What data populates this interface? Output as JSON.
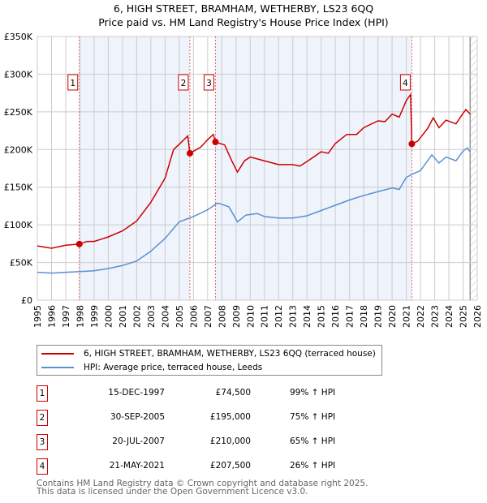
{
  "title": "6, HIGH STREET, BRAMHAM, WETHERBY, LS23 6QQ",
  "subtitle": "Price paid vs. HM Land Registry's House Price Index (HPI)",
  "colors": {
    "property": "#cc0000",
    "hpi": "#5b8fd4",
    "shade": "#eef3fc"
  },
  "chart_data": {
    "type": "line",
    "xlim": [
      1995,
      2026
    ],
    "ylim": [
      0,
      350000
    ],
    "y_ticks": [
      0,
      50000,
      100000,
      150000,
      200000,
      250000,
      300000,
      350000
    ],
    "y_tick_labels": [
      "£0",
      "£50K",
      "£100K",
      "£150K",
      "£200K",
      "£250K",
      "£300K",
      "£350K"
    ],
    "x_tick_labels": [
      "1995",
      "1996",
      "1997",
      "1998",
      "1999",
      "2000",
      "2001",
      "2002",
      "2003",
      "2004",
      "2005",
      "2006",
      "2007",
      "2008",
      "2009",
      "2010",
      "2011",
      "2012",
      "2013",
      "2014",
      "2015",
      "2016",
      "2017",
      "2018",
      "2019",
      "2020",
      "2021",
      "2022",
      "2023",
      "2024",
      "2025",
      "2026"
    ],
    "grid": true,
    "data_end": 2025.5,
    "series": [
      {
        "name": "6, HIGH STREET, BRAMHAM, WETHERBY, LS23 6QQ (terraced house)",
        "color": "#cc0000",
        "x": [
          1995,
          1996,
          1997,
          1997.96,
          1998.5,
          1999,
          2000,
          2001,
          2002,
          2003,
          2004,
          2004.6,
          2005,
          2005.6,
          2005.75,
          2006.5,
          2007,
          2007.4,
          2007.55,
          2008.2,
          2008.7,
          2009.1,
          2009.6,
          2010,
          2011,
          2012,
          2013,
          2013.5,
          2014,
          2015,
          2015.5,
          2016,
          2016.8,
          2017.5,
          2018,
          2019,
          2019.5,
          2020,
          2020.5,
          2021,
          2021.3,
          2021.39,
          2021.8,
          2022.5,
          2022.9,
          2023.3,
          2023.8,
          2024.5,
          2025,
          2025.2,
          2025.5
        ],
        "y": [
          72000,
          69000,
          73000,
          74500,
          78000,
          78000,
          84000,
          92000,
          105000,
          130000,
          162000,
          200000,
          207000,
          218000,
          195000,
          203000,
          213000,
          220000,
          210000,
          206000,
          185000,
          170000,
          185000,
          190000,
          185000,
          180000,
          180000,
          178000,
          184000,
          197000,
          195000,
          208000,
          220000,
          220000,
          229000,
          238000,
          237000,
          247000,
          243000,
          265000,
          273000,
          207500,
          211000,
          228000,
          242000,
          229000,
          239000,
          234000,
          248000,
          253000,
          247000
        ]
      },
      {
        "name": "HPI: Average price, terraced house, Leeds",
        "color": "#5b8fd4",
        "x": [
          1995,
          1996,
          1997,
          1998,
          1999,
          2000,
          2001,
          2002,
          2003,
          2004,
          2005,
          2006,
          2007,
          2007.7,
          2008.5,
          2009.1,
          2009.7,
          2010.5,
          2011,
          2012,
          2013,
          2014,
          2015,
          2016,
          2017,
          2018,
          2019,
          2020,
          2020.5,
          2021,
          2021.5,
          2022,
          2022.8,
          2023.3,
          2023.8,
          2024.5,
          2025,
          2025.3,
          2025.5
        ],
        "y": [
          37000,
          36000,
          37000,
          38000,
          39000,
          42000,
          46000,
          52000,
          65000,
          82000,
          104000,
          111000,
          120000,
          129000,
          124000,
          104000,
          113000,
          115000,
          111000,
          109000,
          109000,
          112000,
          119000,
          126000,
          133000,
          139000,
          144000,
          149000,
          147000,
          163000,
          168000,
          172000,
          193000,
          182000,
          190000,
          185000,
          198000,
          202000,
          197000
        ]
      }
    ],
    "sales": [
      {
        "label": "1",
        "x": 1997.96,
        "date": "15-DEC-1997",
        "price": 74500,
        "price_text": "£74,500",
        "hpi": "99% ↑ HPI"
      },
      {
        "label": "2",
        "x": 2005.75,
        "date": "30-SEP-2005",
        "price": 195000,
        "price_text": "£195,000",
        "hpi": "75% ↑ HPI"
      },
      {
        "label": "3",
        "x": 2007.55,
        "date": "20-JUL-2007",
        "price": 210000,
        "price_text": "£210,000",
        "hpi": "65% ↑ HPI"
      },
      {
        "label": "4",
        "x": 2021.39,
        "date": "21-MAY-2021",
        "price": 207500,
        "price_text": "£207,500",
        "hpi": "26% ↑ HPI"
      }
    ]
  },
  "legend": {
    "property": "6, HIGH STREET, BRAMHAM, WETHERBY, LS23 6QQ (terraced house)",
    "hpi": "HPI: Average price, terraced house, Leeds"
  },
  "footer": {
    "line1": "Contains HM Land Registry data © Crown copyright and database right 2025.",
    "line2": "This data is licensed under the Open Government Licence v3.0."
  }
}
